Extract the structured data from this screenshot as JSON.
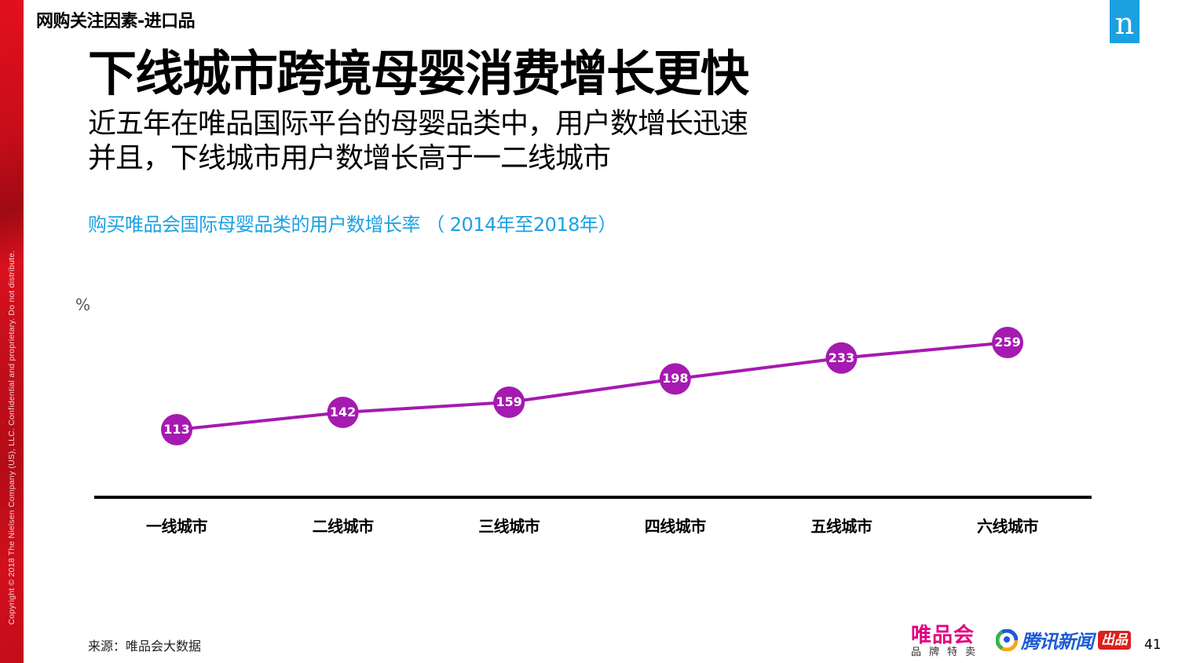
{
  "sidebar": {
    "copyright": "Copyright © 2018 The Nielsen Company (US), LLC. Confidential and proprietary. Do not distribute."
  },
  "header": {
    "section_label": "网购关注因素-进口品",
    "brand_logo": "n"
  },
  "headline": "下线城市跨境母婴消费增长更快",
  "subtitle": {
    "line1": "近五年在唯品国际平台的母婴品类中，用户数增长迅速",
    "line2": "并且，下线城市用户数增长高于一二线城市"
  },
  "colors": {
    "accent_blue": "#1ba1e2",
    "series_purple": "#a51ab0",
    "sidebar_red": "#c80d1a"
  },
  "chart_data": {
    "type": "line",
    "title": "购买唯品会国际母婴品类的用户数增长率 （ 2014年至2018年）",
    "xlabel": "",
    "ylabel": "%",
    "categories": [
      "一线城市",
      "二线城市",
      "三线城市",
      "四线城市",
      "五线城市",
      "六线城市"
    ],
    "series": [
      {
        "name": "用户数增长率",
        "values": [
          113,
          142,
          159,
          198,
          233,
          259
        ]
      }
    ],
    "grid": false,
    "legend": "none",
    "data_labels": true
  },
  "footer": {
    "source": "来源：唯品会大数据",
    "vip_logo": "唯品会",
    "vip_tagline": "品牌特卖",
    "tencent_logo": "腾讯新闻",
    "produced_badge": "出品",
    "page_number": "41"
  }
}
